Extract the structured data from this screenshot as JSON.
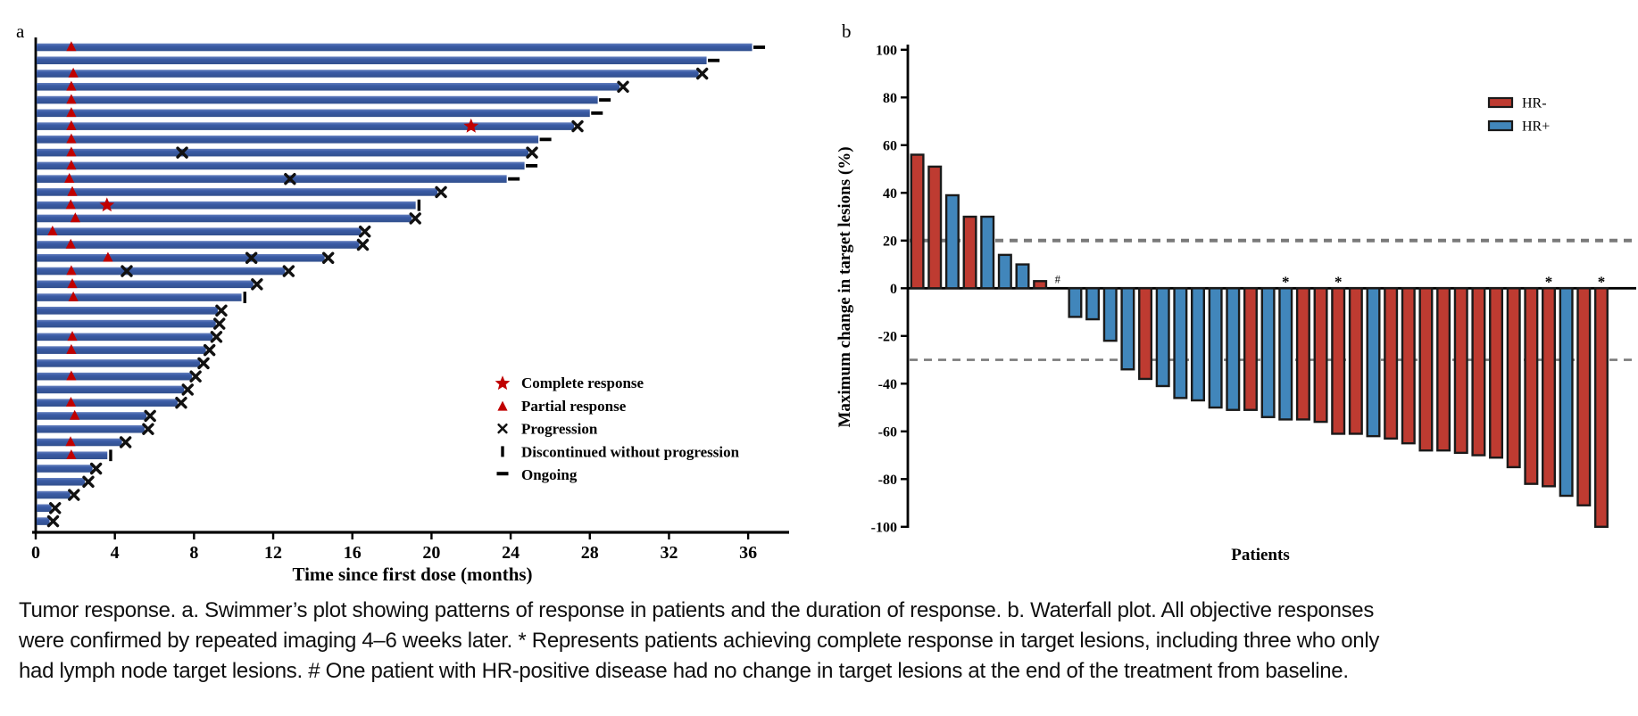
{
  "figure": {
    "panel_a_label": "a",
    "panel_b_label": "b"
  },
  "caption": "Tumor response. a. Swimmer’s plot showing patterns of response in patients and the duration of response. b. Waterfall plot. All objective responses were confirmed by repeated imaging 4–6 weeks later. * Represents patients achieving complete response in target lesions, including three who only had lymph node target lesions. # One patient with HR-positive disease had no change in target lesions at the end of the treatment from baseline.",
  "colors": {
    "swimmer_bar": "#3A5BA5",
    "response_red": "#C00000",
    "hr_neg": "#BE3B31",
    "hr_pos": "#4186BB",
    "bar_outline": "#1A1A1A",
    "threshold_gray": "#7A7A7A",
    "axis_black": "#000000"
  },
  "chart_data": [
    {
      "type": "swimmer",
      "panel": "a",
      "title": "",
      "xlabel": "Time since first dose (months)",
      "xticks": [
        0,
        4,
        8,
        12,
        16,
        20,
        24,
        28,
        32,
        36
      ],
      "xlim": [
        0,
        38
      ],
      "grid": false,
      "legend_position": "lower-right",
      "legend": [
        {
          "symbol": "star",
          "label": "Complete response"
        },
        {
          "symbol": "triangle",
          "label": "Partial response"
        },
        {
          "symbol": "x",
          "label": "Progression"
        },
        {
          "symbol": "vbar",
          "label": "Discontinued without progression"
        },
        {
          "symbol": "dash",
          "label": "Ongoing"
        }
      ],
      "patients": [
        {
          "months": 36.2,
          "end": "ongoing",
          "events": [
            {
              "type": "partial_response",
              "month": 1.8
            }
          ]
        },
        {
          "months": 33.9,
          "end": "ongoing",
          "events": []
        },
        {
          "months": 33.5,
          "end": "progression",
          "events": [
            {
              "type": "partial_response",
              "month": 1.9
            }
          ]
        },
        {
          "months": 29.5,
          "end": "progression",
          "events": [
            {
              "type": "partial_response",
              "month": 1.8
            }
          ]
        },
        {
          "months": 28.4,
          "end": "ongoing",
          "events": [
            {
              "type": "partial_response",
              "month": 1.8
            }
          ]
        },
        {
          "months": 28.0,
          "end": "ongoing",
          "events": [
            {
              "type": "partial_response",
              "month": 1.8
            }
          ]
        },
        {
          "months": 27.2,
          "end": "progression",
          "events": [
            {
              "type": "partial_response",
              "month": 1.8
            },
            {
              "type": "complete_response",
              "month": 22.0
            }
          ]
        },
        {
          "months": 25.4,
          "end": "ongoing",
          "events": [
            {
              "type": "partial_response",
              "month": 1.8
            }
          ]
        },
        {
          "months": 24.9,
          "end": "progression",
          "events": [
            {
              "type": "partial_response",
              "month": 1.8
            },
            {
              "type": "progression",
              "month": 7.4
            }
          ]
        },
        {
          "months": 24.7,
          "end": "ongoing",
          "events": [
            {
              "type": "partial_response",
              "month": 1.8
            }
          ]
        },
        {
          "months": 23.8,
          "end": "ongoing",
          "events": [
            {
              "type": "partial_response",
              "month": 1.7
            },
            {
              "type": "progression",
              "month": 12.85
            }
          ]
        },
        {
          "months": 20.3,
          "end": "progression",
          "events": [
            {
              "type": "partial_response",
              "month": 1.85
            }
          ]
        },
        {
          "months": 19.2,
          "end": "discontinued",
          "events": [
            {
              "type": "partial_response",
              "month": 1.77
            },
            {
              "type": "complete_response",
              "month": 3.6
            }
          ]
        },
        {
          "months": 19.0,
          "end": "progression",
          "events": [
            {
              "type": "partial_response",
              "month": 2.0
            }
          ]
        },
        {
          "months": 16.45,
          "end": "progression",
          "events": [
            {
              "type": "partial_response",
              "month": 0.85
            }
          ]
        },
        {
          "months": 16.35,
          "end": "progression",
          "events": [
            {
              "type": "partial_response",
              "month": 1.77
            }
          ]
        },
        {
          "months": 14.6,
          "end": "progression",
          "events": [
            {
              "type": "partial_response",
              "month": 3.65
            },
            {
              "type": "progression",
              "month": 10.9
            }
          ]
        },
        {
          "months": 12.6,
          "end": "progression",
          "events": [
            {
              "type": "partial_response",
              "month": 1.8
            },
            {
              "type": "progression",
              "month": 4.6
            }
          ]
        },
        {
          "months": 11.0,
          "end": "progression",
          "events": [
            {
              "type": "partial_response",
              "month": 1.85
            }
          ]
        },
        {
          "months": 10.4,
          "end": "discontinued",
          "events": [
            {
              "type": "partial_response",
              "month": 1.9
            }
          ]
        },
        {
          "months": 9.2,
          "end": "progression",
          "events": []
        },
        {
          "months": 9.1,
          "end": "progression",
          "events": []
        },
        {
          "months": 8.95,
          "end": "progression",
          "events": [
            {
              "type": "partial_response",
              "month": 1.85
            }
          ]
        },
        {
          "months": 8.6,
          "end": "progression",
          "events": [
            {
              "type": "partial_response",
              "month": 1.8
            }
          ]
        },
        {
          "months": 8.3,
          "end": "progression",
          "events": []
        },
        {
          "months": 7.9,
          "end": "progression",
          "events": [
            {
              "type": "partial_response",
              "month": 1.8
            }
          ]
        },
        {
          "months": 7.5,
          "end": "progression",
          "events": []
        },
        {
          "months": 7.17,
          "end": "progression",
          "events": [
            {
              "type": "partial_response",
              "month": 1.78
            }
          ]
        },
        {
          "months": 5.6,
          "end": "progression",
          "events": [
            {
              "type": "partial_response",
              "month": 1.97
            }
          ]
        },
        {
          "months": 5.5,
          "end": "progression",
          "events": []
        },
        {
          "months": 4.36,
          "end": "progression",
          "events": [
            {
              "type": "partial_response",
              "month": 1.76
            }
          ]
        },
        {
          "months": 3.62,
          "end": "discontinued",
          "events": [
            {
              "type": "partial_response",
              "month": 1.8
            }
          ]
        },
        {
          "months": 2.87,
          "end": "progression",
          "events": []
        },
        {
          "months": 2.48,
          "end": "progression",
          "events": []
        },
        {
          "months": 1.75,
          "end": "progression",
          "events": []
        },
        {
          "months": 0.8,
          "end": "progression",
          "events": []
        },
        {
          "months": 0.7,
          "end": "progression",
          "events": []
        }
      ]
    },
    {
      "type": "bar",
      "panel": "b",
      "title": "",
      "ylabel": "Maximum change in target lesions (%)",
      "xlabel": "Patients",
      "ylim": [
        -100,
        100
      ],
      "yticks": [
        100,
        80,
        60,
        40,
        20,
        0,
        -20,
        -40,
        -60,
        -80,
        -100
      ],
      "reference_lines": [
        20,
        -30
      ],
      "grid": false,
      "legend_position": "upper-right",
      "legend": [
        {
          "label": "HR-",
          "color_key": "hr_neg"
        },
        {
          "label": "HR+",
          "color_key": "hr_pos"
        }
      ],
      "patients": [
        {
          "change": 56,
          "hr": "HR-"
        },
        {
          "change": 51,
          "hr": "HR-"
        },
        {
          "change": 39,
          "hr": "HR+"
        },
        {
          "change": 30,
          "hr": "HR-"
        },
        {
          "change": 30,
          "hr": "HR+"
        },
        {
          "change": 14,
          "hr": "HR+"
        },
        {
          "change": 10,
          "hr": "HR+"
        },
        {
          "change": 3,
          "hr": "HR-"
        },
        {
          "change": 0,
          "hr": "HR+",
          "annotation": "#"
        },
        {
          "change": -12,
          "hr": "HR+"
        },
        {
          "change": -13,
          "hr": "HR+"
        },
        {
          "change": -22,
          "hr": "HR+"
        },
        {
          "change": -34,
          "hr": "HR+"
        },
        {
          "change": -38,
          "hr": "HR-"
        },
        {
          "change": -41,
          "hr": "HR+"
        },
        {
          "change": -46,
          "hr": "HR+"
        },
        {
          "change": -47,
          "hr": "HR+"
        },
        {
          "change": -50,
          "hr": "HR+"
        },
        {
          "change": -51,
          "hr": "HR+"
        },
        {
          "change": -51,
          "hr": "HR-"
        },
        {
          "change": -54,
          "hr": "HR+"
        },
        {
          "change": -55,
          "hr": "HR+",
          "annotation": "*"
        },
        {
          "change": -55,
          "hr": "HR-"
        },
        {
          "change": -56,
          "hr": "HR-"
        },
        {
          "change": -61,
          "hr": "HR-",
          "annotation": "*"
        },
        {
          "change": -61,
          "hr": "HR-"
        },
        {
          "change": -62,
          "hr": "HR+"
        },
        {
          "change": -63,
          "hr": "HR-"
        },
        {
          "change": -65,
          "hr": "HR-"
        },
        {
          "change": -68,
          "hr": "HR-"
        },
        {
          "change": -68,
          "hr": "HR-"
        },
        {
          "change": -69,
          "hr": "HR-"
        },
        {
          "change": -70,
          "hr": "HR-"
        },
        {
          "change": -71,
          "hr": "HR-"
        },
        {
          "change": -75,
          "hr": "HR-"
        },
        {
          "change": -82,
          "hr": "HR-"
        },
        {
          "change": -83,
          "hr": "HR-",
          "annotation": "*"
        },
        {
          "change": -87,
          "hr": "HR+"
        },
        {
          "change": -91,
          "hr": "HR-"
        },
        {
          "change": -100,
          "hr": "HR-",
          "annotation": "*"
        }
      ]
    }
  ]
}
